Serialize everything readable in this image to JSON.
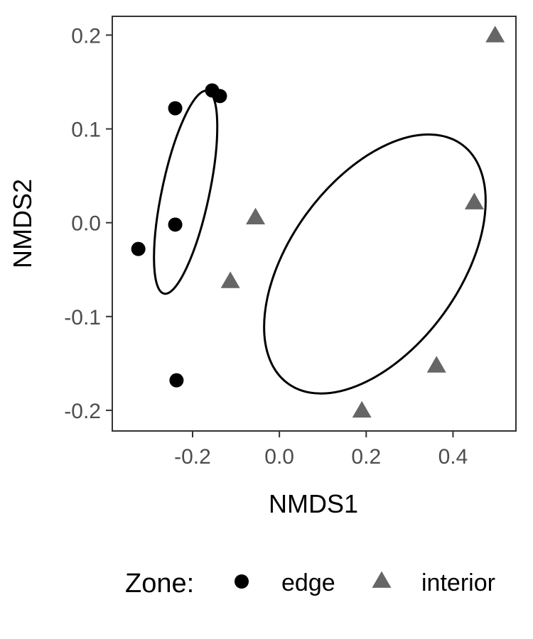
{
  "chart_data": {
    "type": "scatter",
    "xlabel": "NMDS1",
    "ylabel": "NMDS2",
    "xlim": [
      -0.385,
      0.545
    ],
    "ylim": [
      -0.222,
      0.22
    ],
    "x_ticks": [
      -0.2,
      0.0,
      0.2,
      0.4
    ],
    "x_tick_labels": [
      "-0.2",
      "0.0",
      "0.2",
      "0.4"
    ],
    "y_ticks": [
      -0.2,
      -0.1,
      0.0,
      0.1,
      0.2
    ],
    "y_tick_labels": [
      "-0.2",
      "-0.1",
      "0.0",
      "0.1",
      "0.2"
    ],
    "grid": false,
    "legend_position": "bottom",
    "legend_title": "Zone:",
    "series": [
      {
        "name": "edge",
        "marker": "circle",
        "color": "#000000",
        "points": [
          {
            "x": -0.155,
            "y": 0.141
          },
          {
            "x": -0.137,
            "y": 0.135
          },
          {
            "x": -0.24,
            "y": 0.122
          },
          {
            "x": -0.24,
            "y": -0.002
          },
          {
            "x": -0.325,
            "y": -0.028
          },
          {
            "x": -0.237,
            "y": -0.168
          }
        ]
      },
      {
        "name": "interior",
        "marker": "triangle",
        "color": "#666666",
        "points": [
          {
            "x": 0.497,
            "y": 0.199
          },
          {
            "x": 0.449,
            "y": 0.021
          },
          {
            "x": -0.055,
            "y": 0.005
          },
          {
            "x": -0.113,
            "y": -0.063
          },
          {
            "x": 0.362,
            "y": -0.153
          },
          {
            "x": 0.19,
            "y": -0.201
          }
        ]
      }
    ],
    "ellipses": [
      {
        "group": "edge",
        "cx": -0.216,
        "cy": 0.0325,
        "rx": 0.0545,
        "ry": 0.1105,
        "rotation_deg": 12
      },
      {
        "group": "interior",
        "cx": 0.22,
        "cy": -0.044,
        "rx": 0.1955,
        "ry": 0.1575,
        "rotation_deg": 36
      }
    ]
  }
}
